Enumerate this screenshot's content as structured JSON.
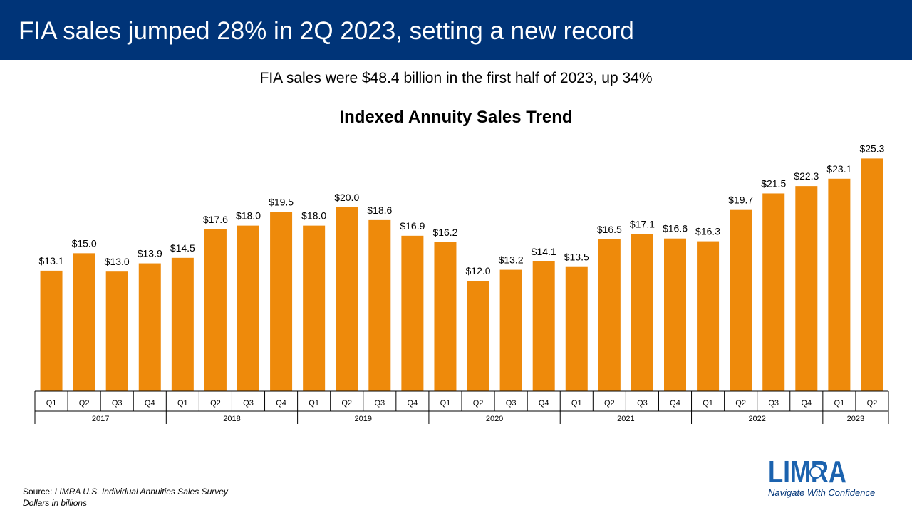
{
  "header": {
    "title": "FIA sales jumped 28% in 2Q 2023, setting a new record"
  },
  "subtitle": "FIA sales were $48.4 billion in the first half of 2023, up 34%",
  "footer": {
    "source_label": "Source: ",
    "source_name": "LIMRA U.S. Individual Annuities Sales Survey",
    "units_note": "Dollars in billions"
  },
  "logo": {
    "text": "LIMRA",
    "tagline": "Navigate With Confidence"
  },
  "colors": {
    "banner": "#003478",
    "bar": "#EE8A0B",
    "logo": "#1B62AE"
  },
  "chart_data": {
    "type": "bar",
    "title": "Indexed Annuity Sales Trend",
    "xlabel": "",
    "ylabel": "",
    "ylim": [
      0,
      27.5
    ],
    "grid": false,
    "categories": [
      "Q1",
      "Q2",
      "Q3",
      "Q4",
      "Q1",
      "Q2",
      "Q3",
      "Q4",
      "Q1",
      "Q2",
      "Q3",
      "Q4",
      "Q1",
      "Q2",
      "Q3",
      "Q4",
      "Q1",
      "Q2",
      "Q3",
      "Q4",
      "Q1",
      "Q2",
      "Q3",
      "Q4",
      "Q1",
      "Q2"
    ],
    "values": [
      13.1,
      15.0,
      13.0,
      13.9,
      14.5,
      17.6,
      18.0,
      19.5,
      18.0,
      20.0,
      18.6,
      16.9,
      16.2,
      12.0,
      13.2,
      14.1,
      13.5,
      16.5,
      17.1,
      16.6,
      16.3,
      19.7,
      21.5,
      22.3,
      23.1,
      25.3
    ],
    "labels": [
      "$13.1",
      "$15.0",
      "$13.0",
      "$13.9",
      "$14.5",
      "$17.6",
      "$18.0",
      "$19.5",
      "$18.0",
      "$20.0",
      "$18.6",
      "$16.9",
      "$16.2",
      "$12.0",
      "$13.2",
      "$14.1",
      "$13.5",
      "$16.5",
      "$17.1",
      "$16.6",
      "$16.3",
      "$19.7",
      "$21.5",
      "$22.3",
      "$23.1",
      "$25.3"
    ],
    "years": [
      {
        "label": "2017",
        "count": 4
      },
      {
        "label": "2018",
        "count": 4
      },
      {
        "label": "2019",
        "count": 4
      },
      {
        "label": "2020",
        "count": 4
      },
      {
        "label": "2021",
        "count": 4
      },
      {
        "label": "2022",
        "count": 4
      },
      {
        "label": "2023",
        "count": 2
      }
    ]
  }
}
